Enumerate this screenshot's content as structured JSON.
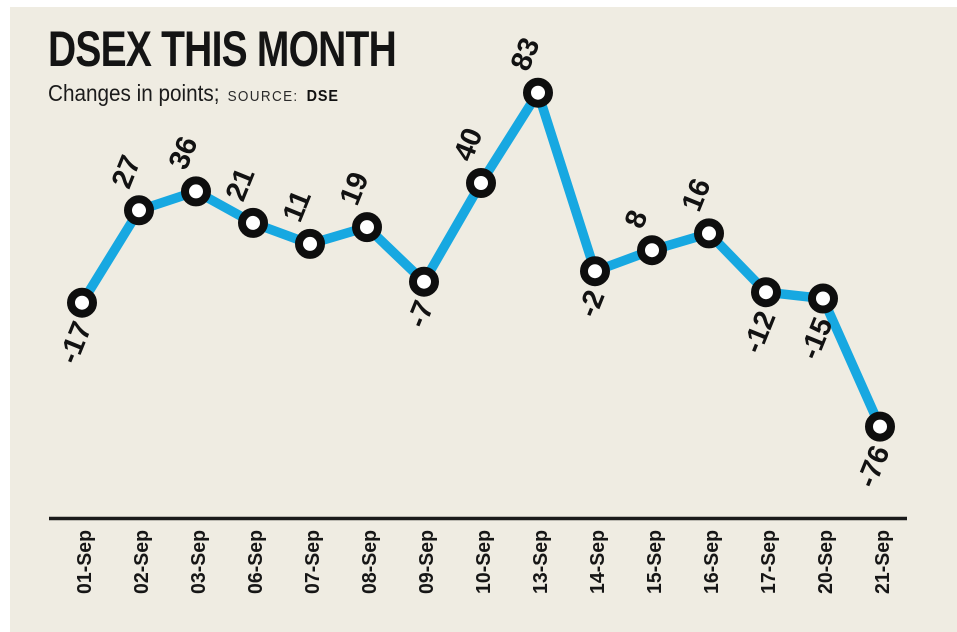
{
  "header": {
    "title": "DSEX THIS MONTH",
    "subtitle": "Changes in points;",
    "source_label": "SOURCE:",
    "source_value": "DSE"
  },
  "colors": {
    "background": "#EFECE2",
    "page_margin": "#FFFFFF",
    "line": "#17A8E1",
    "marker_fill": "#FFFFFF",
    "marker_stroke": "#0E0E0E",
    "axis": "#1A1A1A",
    "label_text": "#121212",
    "tick_text": "#161616"
  },
  "chart_data": {
    "type": "line",
    "title": "DSEX THIS MONTH",
    "subtitle": "Changes in points; SOURCE: DSE",
    "categories": [
      "01-Sep",
      "02-Sep",
      "03-Sep",
      "06-Sep",
      "07-Sep",
      "08-Sep",
      "09-Sep",
      "10-Sep",
      "13-Sep",
      "14-Sep",
      "15-Sep",
      "16-Sep",
      "17-Sep",
      "20-Sep",
      "21-Sep"
    ],
    "values": [
      -17,
      27,
      36,
      21,
      11,
      19,
      -7,
      40,
      83,
      -2,
      8,
      16,
      -12,
      -15,
      -76
    ],
    "xlabel": "",
    "ylabel": "Change in points",
    "ylim": [
      -90,
      100
    ],
    "grid": false,
    "legend": "none",
    "marker": "open-circle",
    "data_labels": true,
    "data_label_rotation_deg": -68,
    "x_tick_rotation_deg": -90
  }
}
